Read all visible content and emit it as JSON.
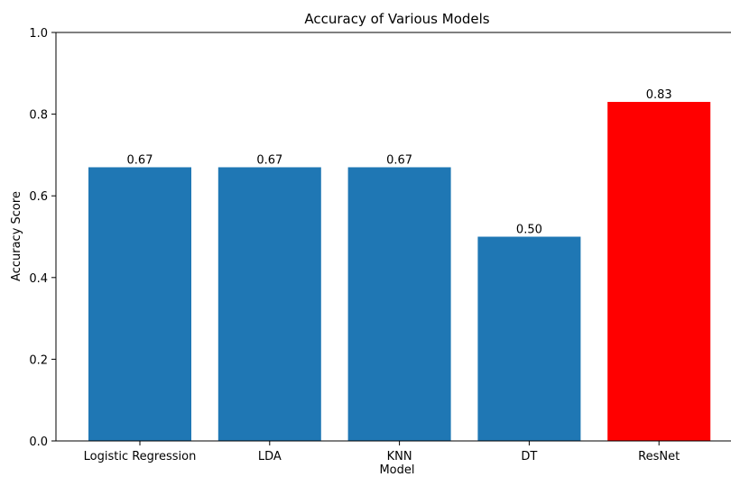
{
  "chart_data": {
    "type": "bar",
    "title": "Accuracy of Various Models",
    "xlabel": "Model",
    "ylabel": "Accuracy Score",
    "ylim": [
      0,
      1.0
    ],
    "yticks": [
      0.0,
      0.2,
      0.4,
      0.6,
      0.8,
      1.0
    ],
    "ytick_labels": [
      "0.0",
      "0.2",
      "0.4",
      "0.6",
      "0.8",
      "1.0"
    ],
    "categories": [
      "Logistic Regression",
      "LDA",
      "KNN",
      "DT",
      "ResNet"
    ],
    "values": [
      0.67,
      0.67,
      0.67,
      0.5,
      0.83
    ],
    "value_labels": [
      "0.67",
      "0.67",
      "0.67",
      "0.50",
      "0.83"
    ],
    "colors": [
      "#1f77b4",
      "#1f77b4",
      "#1f77b4",
      "#1f77b4",
      "#ff0000"
    ],
    "grid": false,
    "legend": "none"
  }
}
